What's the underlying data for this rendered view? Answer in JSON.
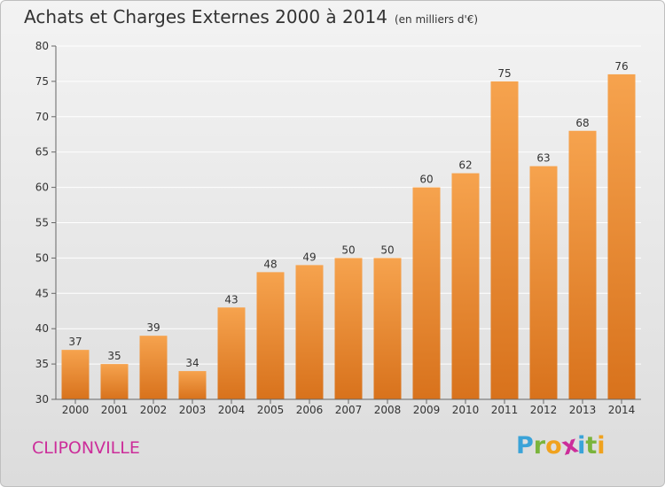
{
  "header": {
    "title": "Achats et Charges Externes 2000 à 2014",
    "unit": "(en milliers d'€)"
  },
  "footer": {
    "commune": "CLIPONVILLE",
    "logo_letters": [
      "P",
      "r",
      "o",
      "x",
      "i",
      "t",
      "i"
    ],
    "logo_colors": [
      "#3aa3d8",
      "#7ab43c",
      "#f0a21e",
      "#cc2d9a",
      "#3aa3d8",
      "#7ab43c",
      "#f0a21e"
    ]
  },
  "colors": {
    "bar_top": "#f6a34e",
    "bar_bottom": "#d8721c",
    "grid": "#ffffff",
    "axis": "#666666",
    "text": "#333333"
  },
  "chart_data": {
    "type": "bar",
    "title": "Achats et Charges Externes 2000 à 2014",
    "subtitle": "(en milliers d'€)",
    "xlabel": "",
    "ylabel": "",
    "categories": [
      "2000",
      "2001",
      "2002",
      "2003",
      "2004",
      "2005",
      "2006",
      "2007",
      "2008",
      "2009",
      "2010",
      "2011",
      "2012",
      "2013",
      "2014"
    ],
    "values": [
      37,
      35,
      39,
      34,
      43,
      48,
      49,
      50,
      50,
      60,
      62,
      75,
      63,
      68,
      76
    ],
    "ylim": [
      30,
      80
    ],
    "yticks": [
      30,
      35,
      40,
      45,
      50,
      55,
      60,
      65,
      70,
      75,
      80
    ],
    "grid": true,
    "data_labels": true
  }
}
